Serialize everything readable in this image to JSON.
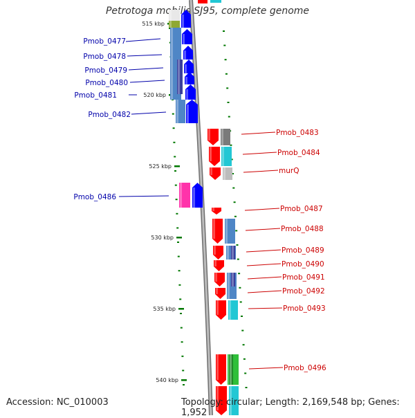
{
  "title": "Petrotoga mobilis SJ95, complete genome",
  "accession": "Accession: NC_010003",
  "topology": "Topology: circular; Length: 2,169,548 bp; Genes: 1,952",
  "colors": {
    "forward_cds": "#0000ff",
    "reverse_cds": "#ff0000",
    "forward_label": "#0000aa",
    "reverse_label": "#cc0000",
    "tick": "#007700",
    "backbone": "#888888",
    "pink_cds": "#ff33aa"
  },
  "scale_labels": [
    "515 kbp",
    "520 kbp",
    "525 kbp",
    "530 kbp",
    "535 kbp",
    "540 kbp"
  ],
  "forward_genes": [
    "Pmob_0477",
    "Pmob_0478",
    "Pmob_0479",
    "Pmob_0480",
    "Pmob_0481",
    "Pmob_0482",
    "Pmob_0486"
  ],
  "reverse_genes": [
    "Pmob_0483",
    "Pmob_0484",
    "murQ",
    "Pmob_0487",
    "Pmob_0488",
    "Pmob_0489",
    "Pmob_0490",
    "Pmob_0491",
    "Pmob_0492",
    "Pmob_0493",
    "Pmob_0496"
  ]
}
